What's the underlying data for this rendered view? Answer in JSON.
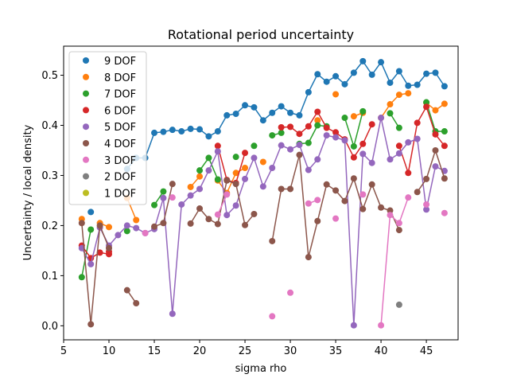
{
  "chart_data": {
    "type": "line",
    "title": "Rotational period uncertainty",
    "xlabel": "sigma rho",
    "ylabel": "Uncertainty / local density",
    "xlim": [
      5,
      48.5
    ],
    "ylim": [
      -0.028,
      0.558
    ],
    "x_ticks": [
      5,
      10,
      15,
      20,
      25,
      30,
      35,
      40,
      45
    ],
    "y_ticks": [
      0.0,
      0.1,
      0.2,
      0.3,
      0.4,
      0.5
    ],
    "y_tick_labels": [
      "0.0",
      "0.1",
      "0.2",
      "0.3",
      "0.4",
      "0.5"
    ],
    "legend_position": "upper-left",
    "series": [
      {
        "name": "9 DOF",
        "color": "#1f77b4",
        "points": [
          [
            8,
            0.227
          ],
          [
            12,
            0.313
          ],
          [
            13,
            0.335
          ],
          [
            14,
            0.335
          ],
          [
            15,
            0.385
          ],
          [
            16,
            0.387
          ],
          [
            17,
            0.391
          ],
          [
            18,
            0.388
          ],
          [
            19,
            0.393
          ],
          [
            20,
            0.392
          ],
          [
            21,
            0.378
          ],
          [
            22,
            0.388
          ],
          [
            23,
            0.42
          ],
          [
            24,
            0.423
          ],
          [
            25,
            0.44
          ],
          [
            26,
            0.436
          ],
          [
            27,
            0.41
          ],
          [
            28,
            0.425
          ],
          [
            29,
            0.438
          ],
          [
            30,
            0.425
          ],
          [
            31,
            0.42
          ],
          [
            32,
            0.466
          ],
          [
            33,
            0.502
          ],
          [
            34,
            0.487
          ],
          [
            35,
            0.498
          ],
          [
            36,
            0.482
          ],
          [
            37,
            0.505
          ],
          [
            38,
            0.528
          ],
          [
            39,
            0.501
          ],
          [
            40,
            0.526
          ],
          [
            41,
            0.485
          ],
          [
            42,
            0.508
          ],
          [
            43,
            0.479
          ],
          [
            44,
            0.481
          ],
          [
            45,
            0.503
          ],
          [
            46,
            0.505
          ],
          [
            47,
            0.478
          ]
        ]
      },
      {
        "name": "8 DOF",
        "color": "#ff7f0e",
        "points": [
          [
            7,
            0.213
          ],
          [
            9,
            0.205
          ],
          [
            10,
            0.197
          ],
          [
            12,
            0.255
          ],
          [
            13,
            0.211
          ],
          [
            19,
            0.277
          ],
          [
            20,
            0.298
          ],
          [
            22,
            0.29
          ],
          [
            23,
            0.265
          ],
          [
            24,
            0.305
          ],
          [
            25,
            0.315
          ],
          [
            27,
            0.327
          ],
          [
            33,
            0.41
          ],
          [
            35,
            0.462
          ],
          [
            37,
            0.418
          ],
          [
            38,
            0.425
          ],
          [
            40,
            0.415
          ],
          [
            41,
            0.442
          ],
          [
            42,
            0.461
          ],
          [
            43,
            0.464
          ],
          [
            45,
            0.445
          ],
          [
            46,
            0.43
          ],
          [
            47,
            0.443
          ]
        ]
      },
      {
        "name": "7 DOF",
        "color": "#2ca02c",
        "points": [
          [
            7,
            0.097
          ],
          [
            8,
            0.192
          ],
          [
            12,
            0.189
          ],
          [
            15,
            0.241
          ],
          [
            16,
            0.268
          ],
          [
            20,
            0.31
          ],
          [
            21,
            0.335
          ],
          [
            22,
            0.292
          ],
          [
            24,
            0.337
          ],
          [
            26,
            0.359
          ],
          [
            28,
            0.38
          ],
          [
            29,
            0.385
          ],
          [
            31,
            0.363
          ],
          [
            32,
            0.365
          ],
          [
            33,
            0.4
          ],
          [
            34,
            0.398
          ],
          [
            36,
            0.415
          ],
          [
            37,
            0.358
          ],
          [
            38,
            0.428
          ],
          [
            41,
            0.424
          ],
          [
            42,
            0.395
          ],
          [
            45,
            0.446
          ],
          [
            46,
            0.388
          ],
          [
            47,
            0.388
          ]
        ]
      },
      {
        "name": "6 DOF",
        "color": "#d62728",
        "points": [
          [
            7,
            0.16
          ],
          [
            8,
            0.135
          ],
          [
            9,
            0.146
          ],
          [
            10,
            0.143
          ],
          [
            10,
            0.148
          ],
          [
            22,
            0.359
          ],
          [
            23,
            0.291
          ],
          [
            24,
            0.285
          ],
          [
            25,
            0.345
          ],
          [
            29,
            0.396
          ],
          [
            30,
            0.397
          ],
          [
            31,
            0.383
          ],
          [
            32,
            0.398
          ],
          [
            33,
            0.427
          ],
          [
            34,
            0.395
          ],
          [
            35,
            0.386
          ],
          [
            36,
            0.372
          ],
          [
            37,
            0.336
          ],
          [
            38,
            0.363
          ],
          [
            39,
            0.402
          ],
          [
            42,
            0.359
          ],
          [
            43,
            0.305
          ],
          [
            44,
            0.405
          ],
          [
            45,
            0.437
          ],
          [
            46,
            0.382
          ],
          [
            47,
            0.359
          ]
        ]
      },
      {
        "name": "5 DOF",
        "color": "#9467bd",
        "points": [
          [
            7,
            0.155
          ],
          [
            8,
            0.123
          ],
          [
            9,
            0.196
          ],
          [
            10,
            0.16
          ],
          [
            11,
            0.181
          ],
          [
            12,
            0.2
          ],
          [
            13,
            0.195
          ],
          [
            14,
            0.185
          ],
          [
            15,
            0.193
          ],
          [
            16,
            0.255
          ],
          [
            17,
            0.024
          ],
          [
            18,
            0.242
          ],
          [
            19,
            0.26
          ],
          [
            20,
            0.273
          ],
          [
            21,
            0.31
          ],
          [
            22,
            0.348
          ],
          [
            23,
            0.221
          ],
          [
            24,
            0.24
          ],
          [
            25,
            0.293
          ],
          [
            26,
            0.335
          ],
          [
            27,
            0.278
          ],
          [
            28,
            0.315
          ],
          [
            29,
            0.36
          ],
          [
            30,
            0.352
          ],
          [
            31,
            0.361
          ],
          [
            32,
            0.311
          ],
          [
            33,
            0.332
          ],
          [
            34,
            0.38
          ],
          [
            35,
            0.376
          ],
          [
            36,
            0.37
          ],
          [
            37,
            0.001
          ],
          [
            38,
            0.343
          ],
          [
            39,
            0.325
          ],
          [
            40,
            0.415
          ],
          [
            41,
            0.332
          ],
          [
            42,
            0.344
          ],
          [
            43,
            0.366
          ],
          [
            44,
            0.373
          ],
          [
            45,
            0.232
          ],
          [
            46,
            0.318
          ],
          [
            47,
            0.309
          ]
        ]
      },
      {
        "name": "4 DOF",
        "color": "#8c564b",
        "points": [
          [
            7,
            0.205
          ],
          [
            8,
            0.003
          ],
          [
            9,
            0.2
          ],
          [
            10,
            0.155
          ],
          [
            12,
            0.071
          ],
          [
            13,
            0.045
          ],
          [
            15,
            0.198
          ],
          [
            16,
            0.205
          ],
          [
            17,
            0.283
          ],
          [
            19,
            0.204
          ],
          [
            20,
            0.234
          ],
          [
            21,
            0.213
          ],
          [
            22,
            0.203
          ],
          [
            23,
            0.29
          ],
          [
            24,
            0.283
          ],
          [
            25,
            0.201
          ],
          [
            26,
            0.223
          ],
          [
            28,
            0.169
          ],
          [
            29,
            0.273
          ],
          [
            30,
            0.273
          ],
          [
            31,
            0.341
          ],
          [
            32,
            0.137
          ],
          [
            33,
            0.209
          ],
          [
            34,
            0.282
          ],
          [
            35,
            0.27
          ],
          [
            36,
            0.249
          ],
          [
            37,
            0.294
          ],
          [
            38,
            0.233
          ],
          [
            39,
            0.282
          ],
          [
            40,
            0.236
          ],
          [
            41,
            0.23
          ],
          [
            42,
            0.191
          ],
          [
            44,
            0.267
          ],
          [
            45,
            0.293
          ],
          [
            46,
            0.35
          ],
          [
            47,
            0.294
          ]
        ]
      },
      {
        "name": "3 DOF",
        "color": "#e377c2",
        "points": [
          [
            14,
            0.185
          ],
          [
            17,
            0.256
          ],
          [
            22,
            0.222
          ],
          [
            23,
            0.262
          ],
          [
            28,
            0.019
          ],
          [
            30,
            0.066
          ],
          [
            32,
            0.244
          ],
          [
            33,
            0.251
          ],
          [
            35,
            0.214
          ],
          [
            38,
            0.262
          ],
          [
            40,
            0.001
          ],
          [
            41,
            0.221
          ],
          [
            42,
            0.205
          ],
          [
            43,
            0.256
          ],
          [
            45,
            0.242
          ],
          [
            47,
            0.225
          ]
        ]
      },
      {
        "name": "2 DOF",
        "color": "#7f7f7f",
        "points": [
          [
            42,
            0.042
          ]
        ]
      },
      {
        "name": "1 DOF",
        "color": "#bcbd22",
        "points": []
      }
    ]
  }
}
